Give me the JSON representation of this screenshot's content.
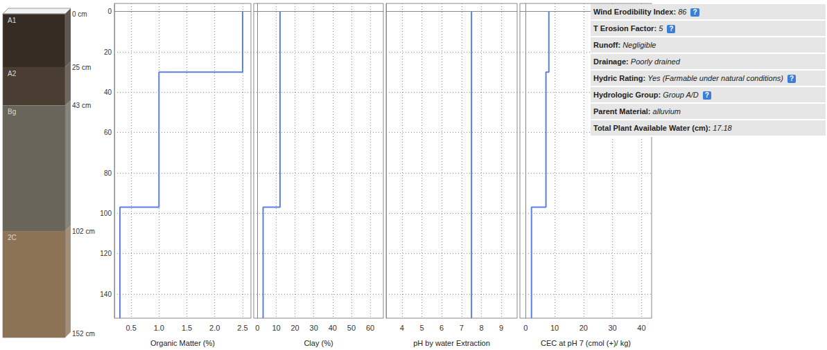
{
  "soil_profile": {
    "horizons": [
      {
        "name": "A1",
        "top": 0,
        "bottom": 25,
        "color": "#362c24"
      },
      {
        "name": "A2",
        "top": 25,
        "bottom": 43,
        "color": "#4a3e33"
      },
      {
        "name": "Bg",
        "top": 43,
        "bottom": 102,
        "color": "#69655a"
      },
      {
        "name": "2C",
        "top": 102,
        "bottom": 152,
        "color": "#8c7356"
      }
    ],
    "depth_labels": [
      {
        "value": 0,
        "label": "0 cm"
      },
      {
        "value": 25,
        "label": "25 cm"
      },
      {
        "value": 43,
        "label": "43 cm"
      },
      {
        "value": 102,
        "label": "102 cm"
      },
      {
        "value": 152,
        "label": "152 cm"
      }
    ]
  },
  "chart_data": [
    {
      "type": "step",
      "x_label": "Organic Matter (%)",
      "xlim": [
        0.2,
        2.65
      ],
      "xticks": [
        0.5,
        {
          "value": 1,
          "label": "1.0"
        },
        1.5,
        {
          "value": 2,
          "label": "2.0"
        },
        2.5
      ],
      "ylim": [
        -4,
        152
      ],
      "yticks": [
        0,
        20,
        40,
        60,
        80,
        100,
        120,
        140
      ],
      "grid": true,
      "depth_bins": [
        0,
        30,
        97,
        152
      ],
      "values": [
        2.5,
        1.0,
        0.3
      ],
      "color": "#5b7fe3"
    },
    {
      "type": "step",
      "x_label": "Clay (%)",
      "xlim": [
        -2,
        67
      ],
      "xticks": [
        0,
        10,
        20,
        30,
        40,
        50,
        60
      ],
      "ylim": [
        -4,
        152
      ],
      "yticks": [
        0,
        20,
        40,
        60,
        80,
        100,
        120,
        140
      ],
      "grid": true,
      "tick_labels": "x",
      "depth_bins": [
        0,
        97,
        152
      ],
      "values": [
        12,
        3
      ],
      "color": "#5b7fe3"
    },
    {
      "type": "step",
      "x_label": "pH by water Extraction",
      "xlim": [
        3.2,
        9.8
      ],
      "xticks": [
        4,
        5,
        6,
        7,
        8,
        9
      ],
      "ylim": [
        -4,
        152
      ],
      "yticks": [
        0,
        20,
        40,
        60,
        80,
        100,
        120,
        140
      ],
      "grid": true,
      "tick_labels": "x",
      "depth_bins": [
        0,
        152
      ],
      "values": [
        7.5
      ],
      "color": "#5b7fe3"
    },
    {
      "type": "step",
      "x_label": "CEC at pH 7 (cmol (+)/ kg)",
      "xlim": [
        -2,
        43.5
      ],
      "xticks": [
        0,
        10,
        20,
        30,
        40
      ],
      "ylim": [
        -4,
        152
      ],
      "yticks": [
        0,
        20,
        40,
        60,
        80,
        100,
        120,
        140
      ],
      "grid": true,
      "tick_labels": "x",
      "depth_bins": [
        0,
        30,
        97,
        152
      ],
      "values": [
        8,
        7,
        2
      ],
      "color": "#5b7fe3"
    }
  ],
  "properties": [
    {
      "label": "Wind Erodibility Index:",
      "value": "86",
      "help": "?"
    },
    {
      "label": "T Erosion Factor:",
      "value": "5",
      "help": "?"
    },
    {
      "label": "Runoff:",
      "value": "Negligible"
    },
    {
      "label": "Drainage:",
      "value": "Poorly drained"
    },
    {
      "label": "Hydric Rating:",
      "value": "Yes (Farmable under natural conditions)",
      "help": "?"
    },
    {
      "label": "Hydrologic Group:",
      "value": "Group A/D",
      "help": "?"
    },
    {
      "label": "Parent Material:",
      "value": "alluvium"
    },
    {
      "label": "Total Plant Available Water (cm):",
      "value": "17.18"
    }
  ]
}
